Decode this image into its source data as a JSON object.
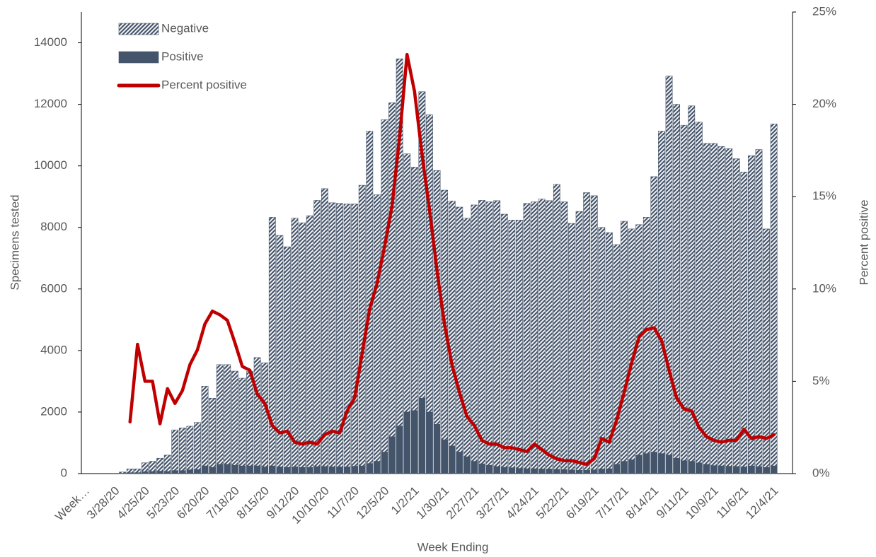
{
  "chart_data": {
    "type": "bar",
    "stacked": true,
    "legend": "upper left",
    "x_label": "Week Ending",
    "y_label": "Specimens tested",
    "y2_label": "Percent positive",
    "categories": [
      "Week…",
      null,
      null,
      null,
      "3/28/20",
      null,
      null,
      null,
      "4/25/20",
      null,
      null,
      null,
      "5/23/20",
      null,
      null,
      null,
      "6/20/20",
      null,
      null,
      null,
      "7/18/20",
      null,
      null,
      null,
      "8/15/20",
      null,
      null,
      null,
      "9/12/20",
      null,
      null,
      null,
      "10/10/20",
      null,
      null,
      null,
      "11/7/20",
      null,
      null,
      null,
      "12/5/20",
      null,
      null,
      null,
      "1/2/21",
      null,
      null,
      null,
      "1/30/21",
      null,
      null,
      null,
      "2/27/21",
      null,
      null,
      null,
      "3/27/21",
      null,
      null,
      null,
      "4/24/21",
      null,
      null,
      null,
      "5/22/21",
      null,
      null,
      null,
      "6/19/21",
      null,
      null,
      null,
      "7/17/21",
      null,
      null,
      null,
      "8/14/21",
      null,
      null,
      null,
      "9/11/21",
      null,
      null,
      null,
      "10/9/21",
      null,
      null,
      null,
      "11/6/21",
      null,
      null,
      null,
      "12/4/21"
    ],
    "ylim": [
      0,
      15000
    ],
    "yticks": [
      0,
      2000,
      4000,
      6000,
      8000,
      10000,
      12000,
      14000
    ],
    "y2lim": [
      0,
      25
    ],
    "y2ticks": [
      {
        "value": 0,
        "label": "0%"
      },
      {
        "value": 5,
        "label": "5%"
      },
      {
        "value": 10,
        "label": "10%"
      },
      {
        "value": 15,
        "label": "15%"
      },
      {
        "value": 20,
        "label": "20%"
      },
      {
        "value": 25,
        "label": "25%"
      }
    ],
    "series": [
      {
        "name": "Negative",
        "color": "#44546a",
        "hatch": true,
        "values": [
          null,
          null,
          null,
          null,
          null,
          40,
          120,
          120,
          290,
          330,
          420,
          530,
          1320,
          1380,
          1420,
          1530,
          2590,
          2250,
          3240,
          3240,
          3060,
          2850,
          3070,
          3520,
          3380,
          8080,
          7520,
          7170,
          8080,
          7950,
          8180,
          8650,
          9030,
          8580,
          8560,
          8540,
          8520,
          9120,
          10800,
          8660,
          10800,
          10850,
          11930,
          8390,
          7910,
          9960,
          9660,
          8250,
          8110,
          7960,
          7960,
          7750,
          8330,
          8560,
          8560,
          8640,
          8230,
          8050,
          8070,
          8620,
          8670,
          8770,
          8720,
          9260,
          8700,
          8010,
          8410,
          9020,
          8910,
          7850,
          7670,
          7140,
          7800,
          7500,
          7490,
          7680,
          8950,
          10480,
          12320,
          11500,
          10900,
          11550,
          11070,
          10430,
          10470,
          10380,
          10320,
          10000,
          9580,
          10080,
          10300,
          7750,
          11110
        ]
      },
      {
        "name": "Positive",
        "color": "#44546a",
        "hatch": false,
        "values": [
          null,
          null,
          null,
          null,
          null,
          10,
          30,
          30,
          60,
          70,
          80,
          70,
          100,
          100,
          120,
          130,
          250,
          200,
          300,
          300,
          270,
          250,
          250,
          250,
          220,
          250,
          220,
          200,
          220,
          200,
          200,
          230,
          230,
          220,
          220,
          220,
          240,
          250,
          330,
          400,
          700,
          1200,
          1550,
          2000,
          2050,
          2450,
          2000,
          1600,
          1100,
          900,
          700,
          550,
          400,
          320,
          270,
          230,
          200,
          190,
          170,
          160,
          160,
          150,
          150,
          140,
          130,
          120,
          110,
          110,
          120,
          150,
          160,
          300,
          400,
          450,
          600,
          650,
          700,
          650,
          600,
          500,
          420,
          400,
          350,
          300,
          260,
          250,
          240,
          230,
          220,
          250,
          230,
          200,
          250
        ]
      },
      {
        "name": "Percent positive",
        "type": "line",
        "axis": "y2",
        "color": "#c00000",
        "values": [
          null,
          null,
          null,
          null,
          null,
          null,
          2.8,
          7.0,
          5.0,
          5.0,
          2.7,
          4.6,
          3.8,
          4.5,
          5.9,
          6.7,
          8.1,
          8.8,
          8.6,
          8.3,
          7.1,
          5.8,
          5.6,
          4.3,
          3.8,
          2.6,
          2.2,
          2.3,
          1.7,
          1.6,
          1.7,
          1.6,
          2.1,
          2.3,
          2.2,
          3.4,
          4.1,
          6.5,
          8.9,
          10.3,
          12.3,
          14.5,
          18.2,
          22.7,
          20.7,
          17.3,
          14.3,
          11.0,
          8.1,
          5.9,
          4.4,
          3.1,
          2.6,
          1.8,
          1.6,
          1.6,
          1.4,
          1.4,
          1.3,
          1.2,
          1.6,
          1.3,
          1.0,
          0.8,
          0.7,
          0.7,
          0.6,
          0.5,
          0.8,
          1.9,
          1.7,
          2.9,
          4.4,
          6.0,
          7.4,
          7.8,
          7.9,
          7.2,
          5.6,
          4.1,
          3.5,
          3.4,
          2.5,
          2.0,
          1.8,
          1.7,
          1.8,
          1.8,
          2.4,
          1.9,
          2.0,
          1.9,
          2.1
        ]
      }
    ]
  }
}
